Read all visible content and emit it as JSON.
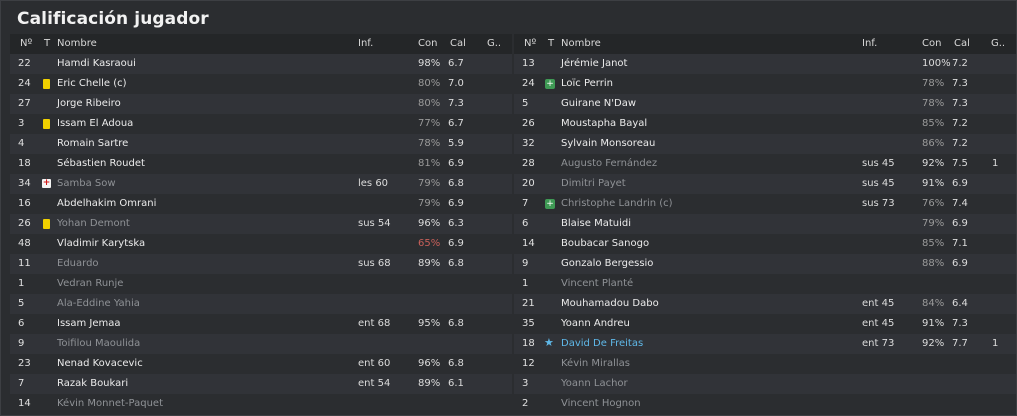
{
  "title": "Calificación jugador",
  "columns": {
    "no": "Nº",
    "t": "T",
    "name": "Nombre",
    "inf": "Inf.",
    "con": "Con",
    "cal": "Cal",
    "g": "G.."
  },
  "left": [
    {
      "no": "22",
      "icon": "",
      "name": "Hamdi Kasraoui",
      "inf": "",
      "con": "98%",
      "cal": "6.7",
      "g": "",
      "style": ""
    },
    {
      "no": "24",
      "icon": "yellow-card",
      "name": "Eric Chelle (c)",
      "inf": "",
      "con": "80%",
      "cal": "7.0",
      "g": "",
      "style": "dimcon"
    },
    {
      "no": "27",
      "icon": "",
      "name": "Jorge Ribeiro",
      "inf": "",
      "con": "80%",
      "cal": "7.3",
      "g": "",
      "style": "dimcon"
    },
    {
      "no": "3",
      "icon": "yellow-card",
      "name": "Issam El Adoua",
      "inf": "",
      "con": "77%",
      "cal": "6.7",
      "g": "",
      "style": "dimcon"
    },
    {
      "no": "4",
      "icon": "",
      "name": "Romain Sartre",
      "inf": "",
      "con": "78%",
      "cal": "5.9",
      "g": "",
      "style": "dimcon"
    },
    {
      "no": "18",
      "icon": "",
      "name": "Sébastien Roudet",
      "inf": "",
      "con": "81%",
      "cal": "6.9",
      "g": "",
      "style": "dimcon"
    },
    {
      "no": "34",
      "icon": "injury",
      "name": "Samba Sow",
      "inf": "les 60",
      "con": "79%",
      "cal": "6.8",
      "g": "",
      "style": "sub dimcon"
    },
    {
      "no": "16",
      "icon": "",
      "name": "Abdelhakim Omrani",
      "inf": "",
      "con": "79%",
      "cal": "6.9",
      "g": "",
      "style": "dimcon"
    },
    {
      "no": "26",
      "icon": "yellow-card",
      "name": "Yohan Demont",
      "inf": "sus 54",
      "con": "96%",
      "cal": "6.3",
      "g": "",
      "style": "sub"
    },
    {
      "no": "48",
      "icon": "",
      "name": "Vladimir Karytska",
      "inf": "",
      "con": "65%",
      "cal": "6.9",
      "g": "",
      "style": "badcon"
    },
    {
      "no": "11",
      "icon": "",
      "name": "Eduardo",
      "inf": "sus 68",
      "con": "89%",
      "cal": "6.8",
      "g": "",
      "style": "sub"
    },
    {
      "no": "1",
      "icon": "",
      "name": "Vedran Runje",
      "inf": "",
      "con": "",
      "cal": "",
      "g": "",
      "style": "sub"
    },
    {
      "no": "5",
      "icon": "",
      "name": "Ala-Eddine Yahia",
      "inf": "",
      "con": "",
      "cal": "",
      "g": "",
      "style": "sub"
    },
    {
      "no": "6",
      "icon": "",
      "name": "Issam Jemaa",
      "inf": "ent 68",
      "con": "95%",
      "cal": "6.8",
      "g": "",
      "style": ""
    },
    {
      "no": "9",
      "icon": "",
      "name": "Toifilou Maoulida",
      "inf": "",
      "con": "",
      "cal": "",
      "g": "",
      "style": "sub"
    },
    {
      "no": "23",
      "icon": "",
      "name": "Nenad Kovacevic",
      "inf": "ent 60",
      "con": "96%",
      "cal": "6.8",
      "g": "",
      "style": ""
    },
    {
      "no": "7",
      "icon": "",
      "name": "Razak Boukari",
      "inf": "ent 54",
      "con": "89%",
      "cal": "6.1",
      "g": "",
      "style": ""
    },
    {
      "no": "14",
      "icon": "",
      "name": "Kévin Monnet-Paquet",
      "inf": "",
      "con": "",
      "cal": "",
      "g": "",
      "style": "sub"
    }
  ],
  "right": [
    {
      "no": "13",
      "icon": "",
      "name": "Jérémie Janot",
      "inf": "",
      "con": "100%",
      "cal": "7.2",
      "g": "",
      "style": ""
    },
    {
      "no": "24",
      "icon": "plus",
      "name": "Loïc Perrin",
      "inf": "",
      "con": "78%",
      "cal": "7.3",
      "g": "",
      "style": "dimcon"
    },
    {
      "no": "5",
      "icon": "",
      "name": "Guirane N'Daw",
      "inf": "",
      "con": "78%",
      "cal": "7.3",
      "g": "",
      "style": "dimcon"
    },
    {
      "no": "26",
      "icon": "",
      "name": "Moustapha Bayal",
      "inf": "",
      "con": "85%",
      "cal": "7.2",
      "g": "",
      "style": "dimcon"
    },
    {
      "no": "32",
      "icon": "",
      "name": "Sylvain Monsoreau",
      "inf": "",
      "con": "86%",
      "cal": "7.2",
      "g": "",
      "style": "dimcon"
    },
    {
      "no": "28",
      "icon": "",
      "name": "Augusto Fernández",
      "inf": "sus 45",
      "con": "92%",
      "cal": "7.5",
      "g": "1",
      "style": "sub"
    },
    {
      "no": "20",
      "icon": "",
      "name": "Dimitri Payet",
      "inf": "sus 45",
      "con": "91%",
      "cal": "6.9",
      "g": "",
      "style": "sub"
    },
    {
      "no": "7",
      "icon": "plus",
      "name": "Christophe Landrin (c)",
      "inf": "sus 73",
      "con": "76%",
      "cal": "7.4",
      "g": "",
      "style": "sub dimcon"
    },
    {
      "no": "6",
      "icon": "",
      "name": "Blaise Matuidi",
      "inf": "",
      "con": "79%",
      "cal": "6.9",
      "g": "",
      "style": "dimcon"
    },
    {
      "no": "14",
      "icon": "",
      "name": "Boubacar Sanogo",
      "inf": "",
      "con": "85%",
      "cal": "7.1",
      "g": "",
      "style": "dimcon"
    },
    {
      "no": "9",
      "icon": "",
      "name": "Gonzalo Bergessio",
      "inf": "",
      "con": "88%",
      "cal": "6.9",
      "g": "",
      "style": "dimcon"
    },
    {
      "no": "1",
      "icon": "",
      "name": "Vincent Planté",
      "inf": "",
      "con": "",
      "cal": "",
      "g": "",
      "style": "sub"
    },
    {
      "no": "21",
      "icon": "",
      "name": "Mouhamadou Dabo",
      "inf": "ent 45",
      "con": "84%",
      "cal": "6.4",
      "g": "",
      "style": "dimcon"
    },
    {
      "no": "35",
      "icon": "",
      "name": "Yoann Andreu",
      "inf": "ent 45",
      "con": "91%",
      "cal": "7.3",
      "g": "",
      "style": ""
    },
    {
      "no": "18",
      "icon": "star",
      "name": "David De Freitas",
      "inf": "ent 73",
      "con": "92%",
      "cal": "7.7",
      "g": "1",
      "style": "star"
    },
    {
      "no": "12",
      "icon": "",
      "name": "Kévin Mirallas",
      "inf": "",
      "con": "",
      "cal": "",
      "g": "",
      "style": "sub"
    },
    {
      "no": "3",
      "icon": "",
      "name": "Yoann Lachor",
      "inf": "",
      "con": "",
      "cal": "",
      "g": "",
      "style": "sub"
    },
    {
      "no": "2",
      "icon": "",
      "name": "Vincent Hognon",
      "inf": "",
      "con": "",
      "cal": "",
      "g": "",
      "style": "sub"
    }
  ]
}
